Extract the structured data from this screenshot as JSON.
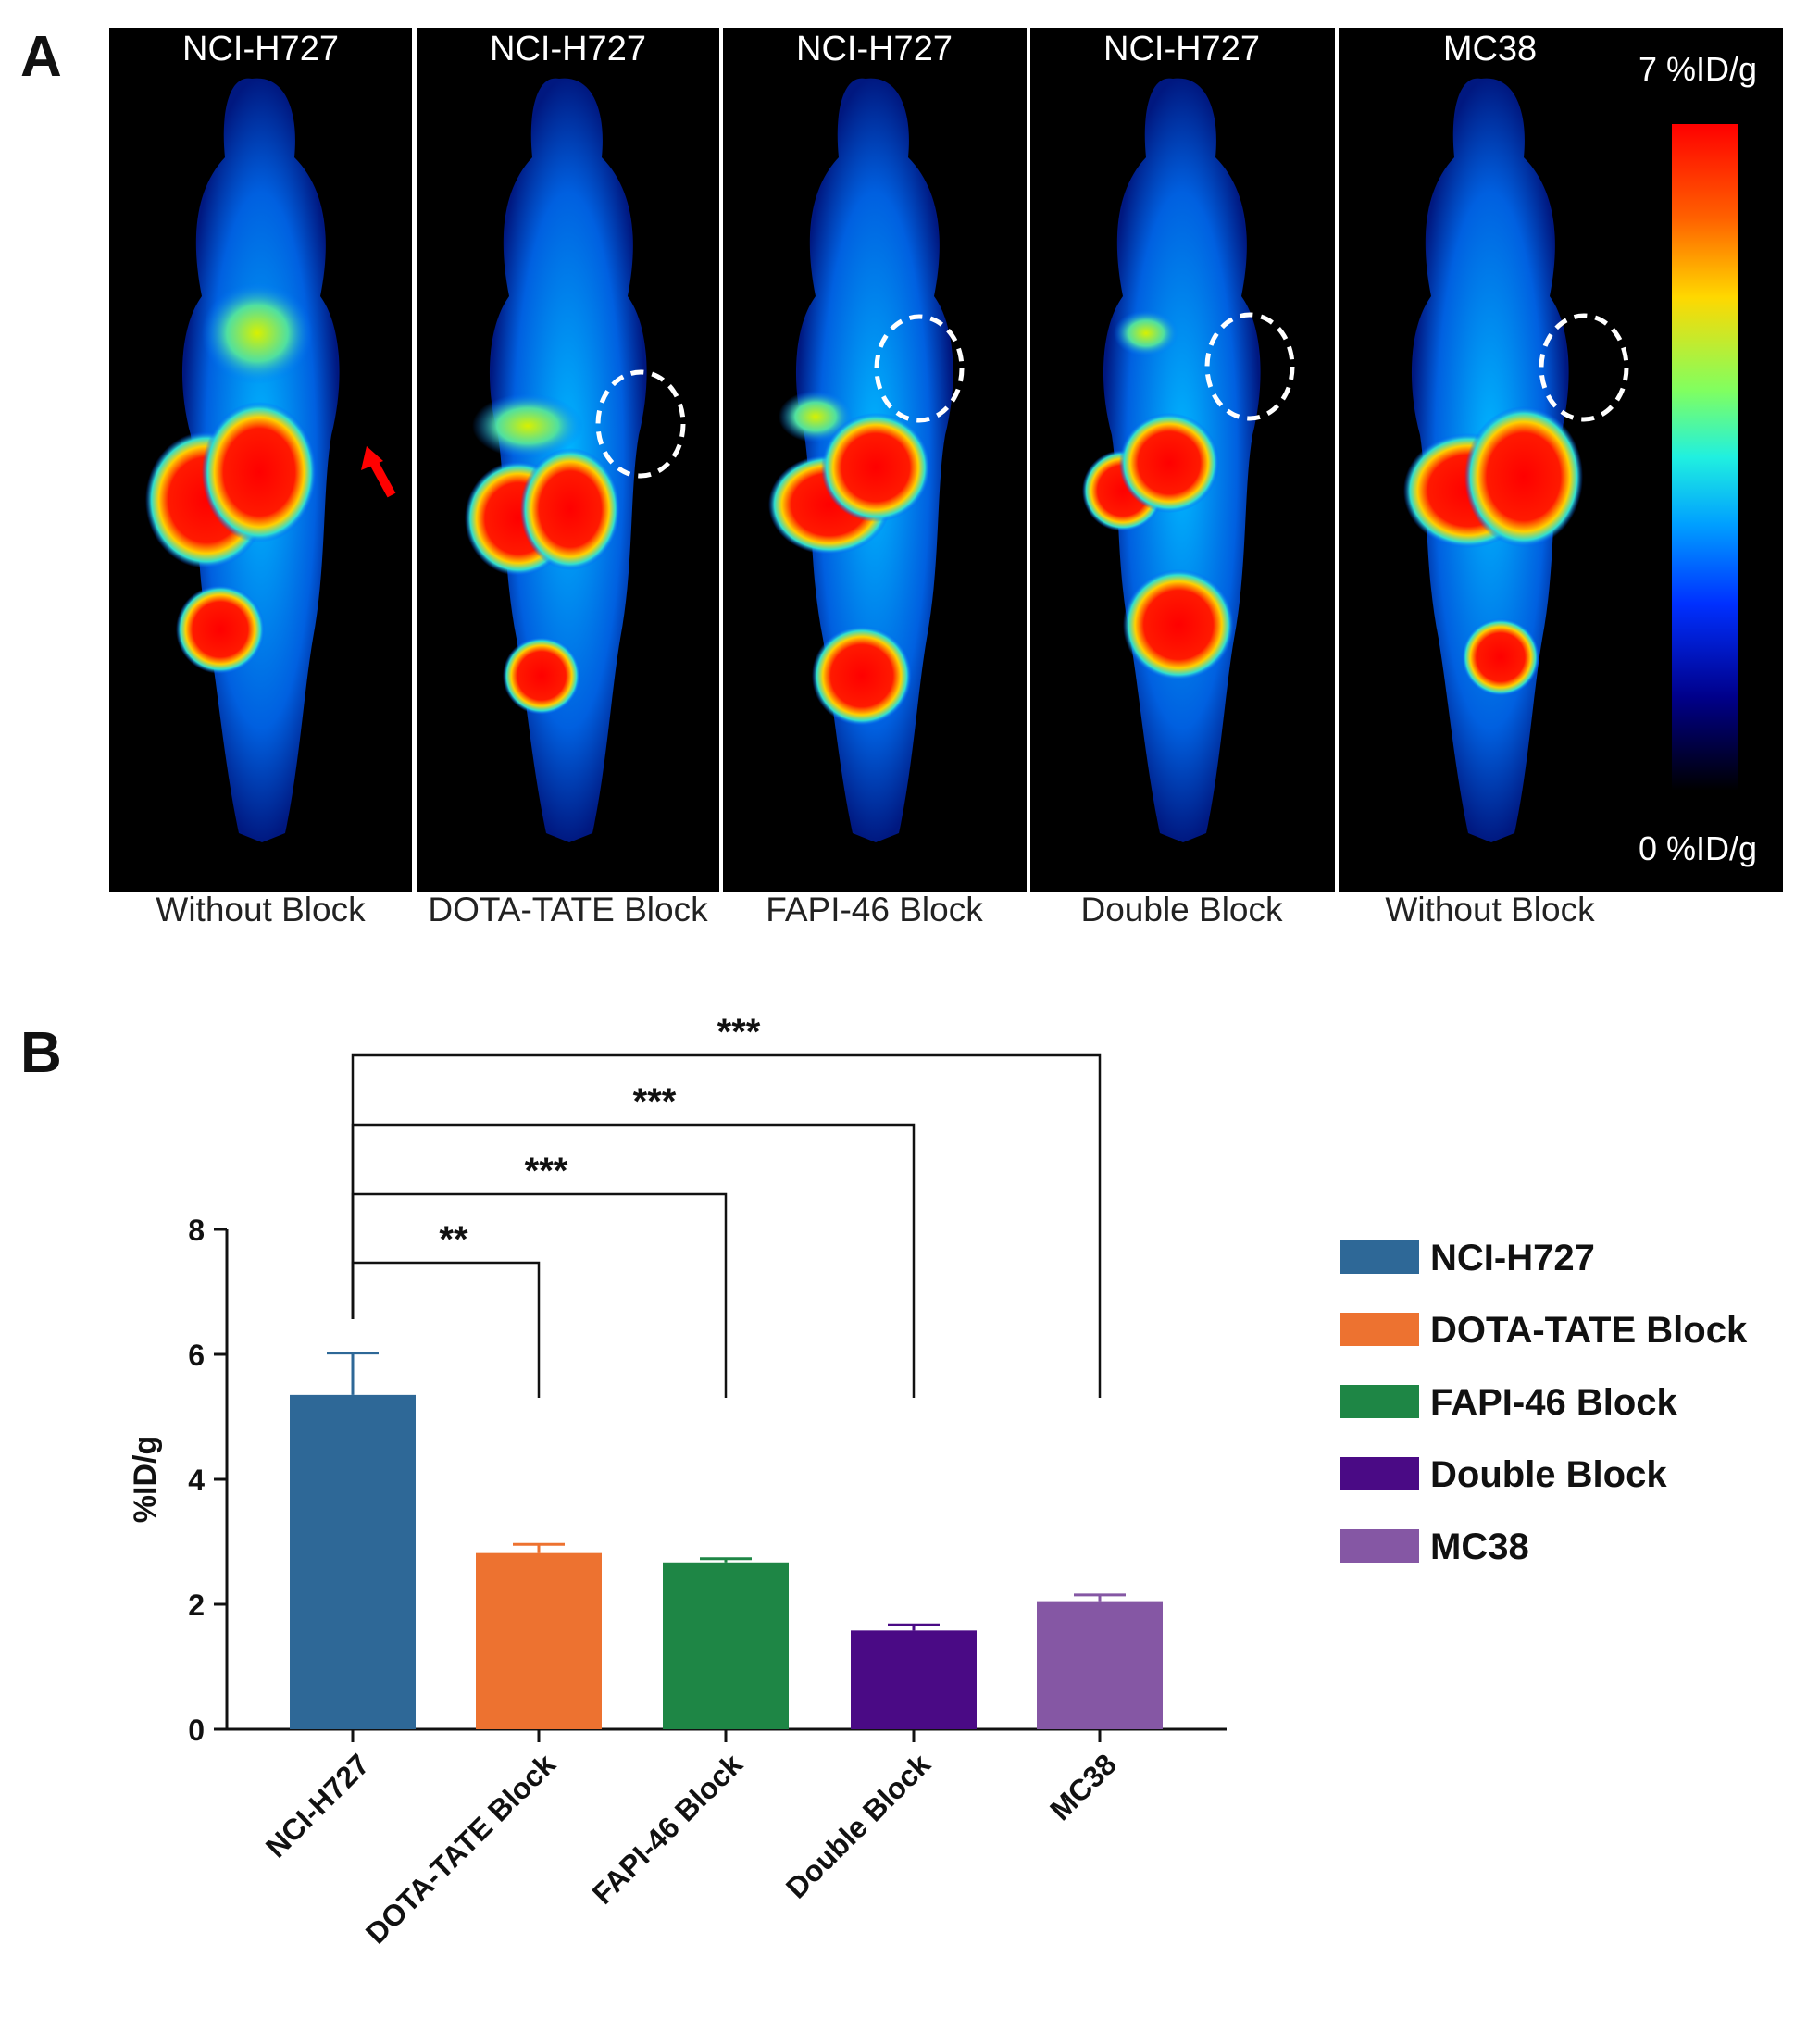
{
  "panel_a": {
    "letter": "A",
    "panels": [
      {
        "title": "NCI-H727",
        "caption": "Without Block",
        "tumor_marker": "arrow"
      },
      {
        "title": "NCI-H727",
        "caption": "DOTA-TATE Block",
        "tumor_marker": "circle"
      },
      {
        "title": "NCI-H727",
        "caption": "FAPI-46 Block",
        "tumor_marker": "circle"
      },
      {
        "title": "NCI-H727",
        "caption": "Double Block",
        "tumor_marker": "circle"
      },
      {
        "title": "MC38",
        "caption": "Without Block",
        "tumor_marker": "circle"
      }
    ],
    "color_scale": {
      "max_label": "7 %ID/g",
      "min_label": "0 %ID/g"
    }
  },
  "panel_b": {
    "letter": "B"
  },
  "chart_data": {
    "type": "bar",
    "title": "",
    "xlabel": "",
    "ylabel": "%ID/g",
    "ylim": [
      0,
      8
    ],
    "yticks": [
      0,
      2,
      4,
      6,
      8
    ],
    "categories": [
      "NCI-H727",
      "DOTA-TATE Block",
      "FAPI-46 Block",
      "Double Block",
      "MC38"
    ],
    "values": [
      5.35,
      2.82,
      2.67,
      1.58,
      2.05
    ],
    "errors": [
      0.67,
      0.14,
      0.06,
      0.09,
      0.1
    ],
    "colors": [
      "#2e6897",
      "#ed7230",
      "#1e8645",
      "#4a0a85",
      "#8557a4"
    ],
    "legend": [
      "NCI-H727",
      "DOTA-TATE Block",
      "FAPI-46 Block",
      "Double Block",
      "MC38"
    ],
    "significance": [
      {
        "from": "NCI-H727",
        "to": "DOTA-TATE Block",
        "label": "**"
      },
      {
        "from": "NCI-H727",
        "to": "FAPI-46 Block",
        "label": "***"
      },
      {
        "from": "NCI-H727",
        "to": "Double Block",
        "label": "***"
      },
      {
        "from": "NCI-H727",
        "to": "MC38",
        "label": "***"
      }
    ]
  }
}
